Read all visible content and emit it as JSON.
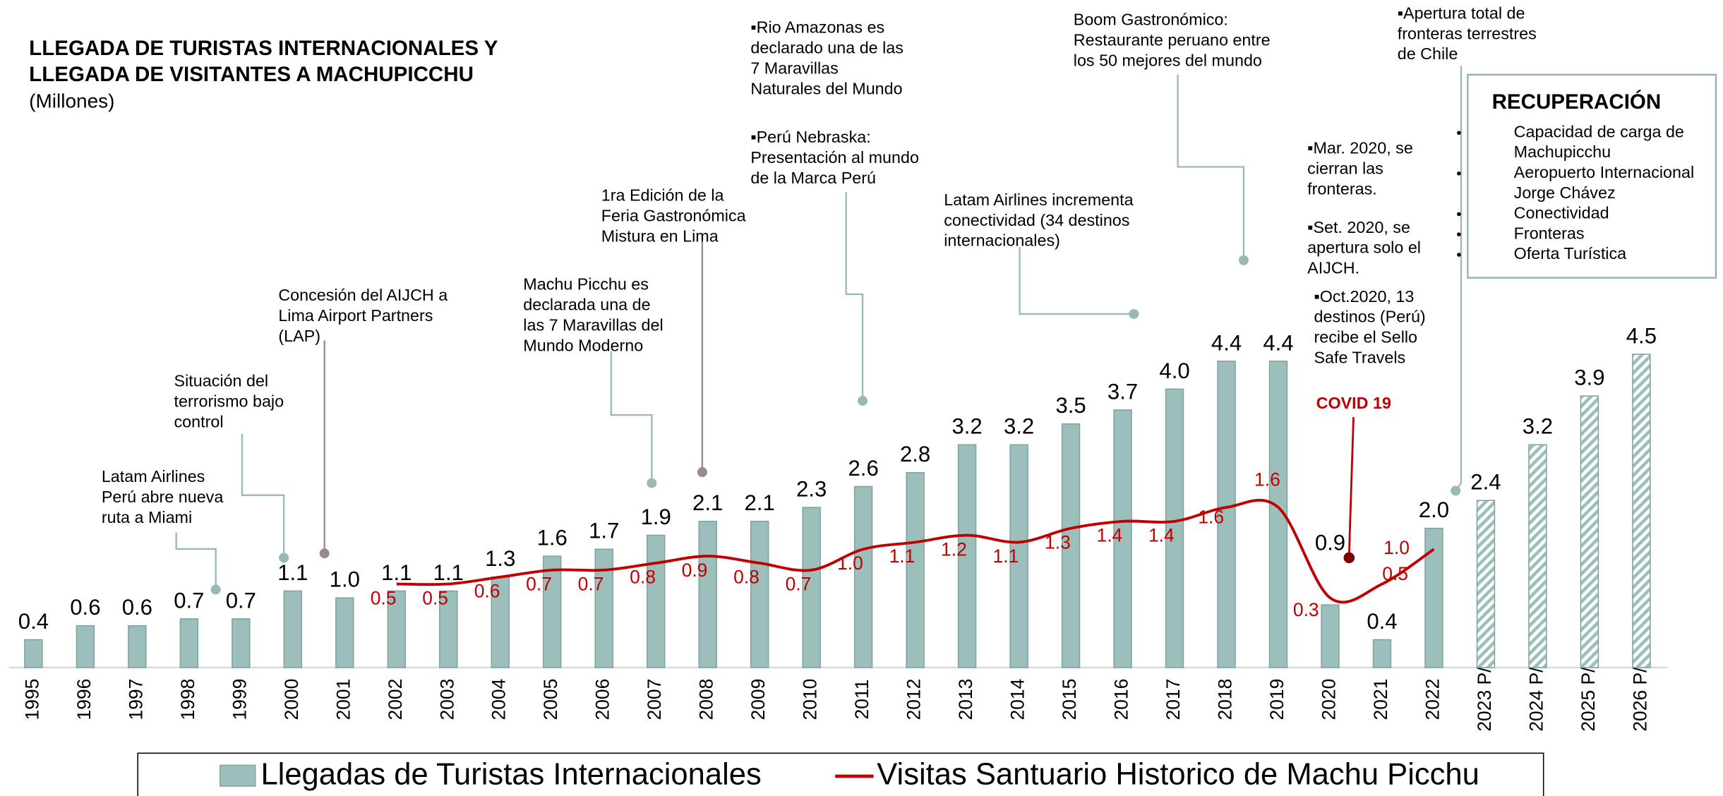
{
  "chart_data": {
    "type": "bar",
    "title": [
      "LLEGADA DE TURISTAS INTERNACIONALES Y",
      "LLEGADA DE VISITANTES A MACHUPICCHU"
    ],
    "subtitle": "(Millones)",
    "categories": [
      "1995",
      "1996",
      "1997",
      "1998",
      "1999",
      "2000",
      "2001",
      "2002",
      "2003",
      "2004",
      "2005",
      "2006",
      "2007",
      "2008",
      "2009",
      "2010",
      "2011",
      "2012",
      "2013",
      "2014",
      "2015",
      "2016",
      "2017",
      "2018",
      "2019",
      "2020",
      "2021",
      "2022",
      "2023 P/",
      "2024 P/",
      "2025 P/",
      "2026 P/"
    ],
    "ylim": [
      0,
      8.8
    ],
    "y2lim": [
      -0.7,
      8.1
    ],
    "series": [
      {
        "name": "Llegadas de Turistas Internacionales",
        "type": "bar",
        "color": "#9dbfbc",
        "values": [
          0.4,
          0.6,
          0.6,
          0.7,
          0.7,
          1.1,
          1.0,
          1.1,
          1.1,
          1.3,
          1.6,
          1.7,
          1.9,
          2.1,
          2.1,
          2.3,
          2.6,
          2.8,
          3.2,
          3.2,
          3.5,
          3.7,
          4.0,
          4.4,
          4.4,
          0.9,
          0.4,
          2.0,
          2.4,
          3.2,
          3.9,
          4.5
        ],
        "value_labels": [
          "0.4",
          "0.6",
          "0.6",
          "0.7",
          "0.7",
          "1.1",
          "1.0",
          "1.1",
          "1.1",
          "1.3",
          "1.6",
          "1.7",
          "1.9",
          "2.1",
          "2.1",
          "2.3",
          "2.6",
          "2.8",
          "3.2",
          "3.2",
          "3.5",
          "3.7",
          "4.0",
          "4.4",
          "4.4",
          "0.9",
          "0.4",
          "2.0",
          "2.4",
          "3.2",
          "3.9",
          "4.5"
        ],
        "hatched": [
          false,
          false,
          false,
          false,
          false,
          false,
          false,
          false,
          false,
          false,
          false,
          false,
          false,
          false,
          false,
          false,
          false,
          false,
          false,
          false,
          false,
          false,
          false,
          false,
          false,
          false,
          false,
          false,
          true,
          true,
          true,
          true
        ]
      },
      {
        "name": "Visitas Santuario Historico de Machu Picchu",
        "type": "line",
        "axis": "y2",
        "color": "#c00000",
        "values": [
          null,
          null,
          null,
          null,
          null,
          null,
          null,
          0.5,
          0.5,
          0.6,
          0.7,
          0.7,
          0.8,
          0.9,
          0.8,
          0.7,
          1.0,
          1.1,
          1.2,
          1.1,
          1.3,
          1.4,
          1.4,
          1.6,
          1.6,
          0.3,
          0.5,
          1.0,
          null,
          null,
          null,
          null
        ],
        "value_labels": [
          null,
          null,
          null,
          null,
          null,
          null,
          null,
          "0.5",
          "0.5",
          "0.6",
          "0.7",
          "0.7",
          "0.8",
          "0.9",
          "0.8",
          "0.7",
          "1.0",
          "1.1",
          "1.2",
          "1.1",
          "1.3",
          "1.4",
          "1.4",
          "1.6",
          "1.6",
          "0.3",
          "0.5",
          "1.0",
          null,
          null,
          null,
          null
        ]
      }
    ],
    "annotations": [
      [
        "Latam Airlines",
        "Perú abre nueva",
        "ruta a Miami"
      ],
      [
        "Situación del",
        "terrorismo bajo",
        "control"
      ],
      [
        "Concesión del AIJCH a",
        "Lima Airport Partners",
        "(LAP)"
      ],
      [
        "Machu Picchu es",
        "declarada una de",
        "las 7 Maravillas del",
        "Mundo Moderno"
      ],
      [
        "1ra Edición de la",
        "Feria Gastronómica",
        "Mistura en Lima"
      ],
      [
        "▪Rio Amazonas es",
        "declarado una de las",
        "7 Maravillas",
        "Naturales del Mundo"
      ],
      [
        "▪Perú Nebraska:",
        "Presentación al mundo",
        "de la Marca Perú"
      ],
      [
        "Latam Airlines incrementa",
        "conectividad (34 destinos",
        "internacionales)"
      ],
      [
        "Boom Gastronómico:",
        "Restaurante peruano entre",
        "los 50 mejores del mundo"
      ],
      [
        "▪Mar. 2020, se",
        "cierran las",
        "fronteras."
      ],
      [
        "▪Set. 2020, se",
        "apertura solo el",
        "AIJCH."
      ],
      [
        "▪Oct.2020, 13",
        "destinos (Perú)",
        "recibe el Sello",
        "Safe Travels"
      ],
      [
        "▪Apertura total de",
        "fronteras terrestres",
        "de Chile"
      ]
    ],
    "covid_label": "COVID 19",
    "recovery": {
      "title": "RECUPERACIÓN",
      "items": [
        [
          "Capacidad de carga de",
          "Machupicchu"
        ],
        [
          "Aeropuerto Internacional",
          "Jorge Chávez"
        ],
        [
          "Conectividad"
        ],
        [
          "Fronteras"
        ],
        [
          "Oferta Turística"
        ]
      ]
    }
  }
}
